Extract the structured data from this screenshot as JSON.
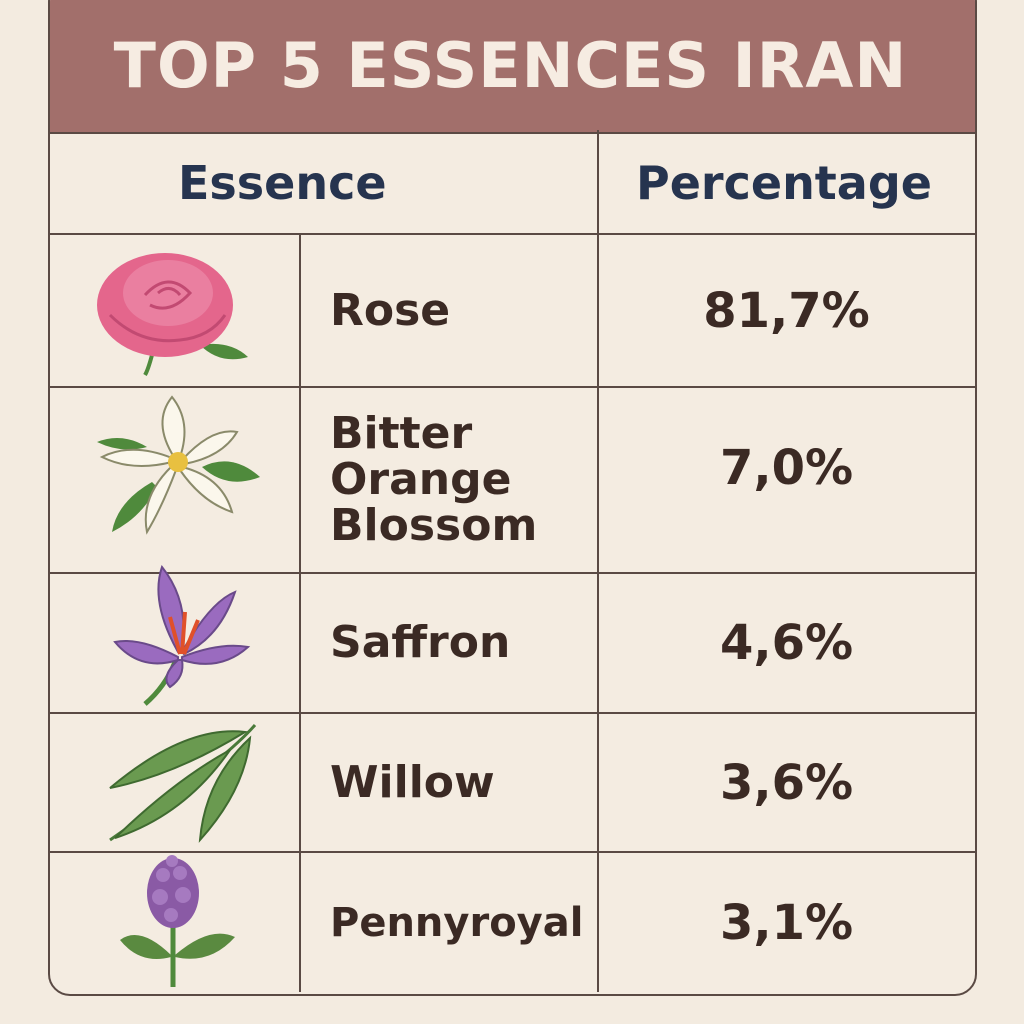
{
  "title": "TOP 5 ESSENCES IRAN",
  "table": {
    "header": [
      "Essence",
      "Percentage"
    ],
    "rows": [
      [
        "Rose",
        "81,7%"
      ],
      [
        "Bitter Orange Blossom",
        "7,0%"
      ],
      [
        "Saffron",
        "4,6%"
      ],
      [
        "Willow",
        "3,6%"
      ],
      [
        "Pennyroyal",
        "3,1%"
      ]
    ]
  }
}
